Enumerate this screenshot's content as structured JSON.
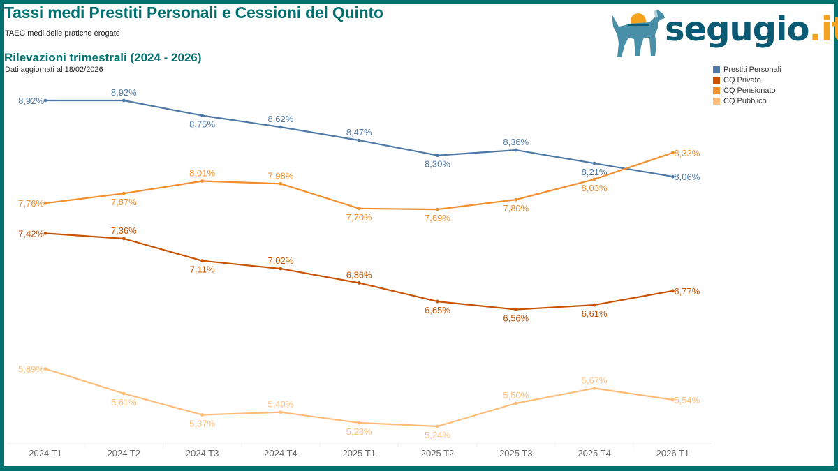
{
  "header": {
    "title": "Tassi medi Prestiti Personali e Cessioni del Quinto",
    "subtitle": "TAEG medi delle pratiche erogate",
    "section_title": "Rilevazioni trimestrali (2024 - 2026)",
    "updated": "Dati aggiornati al 18/02/2026"
  },
  "logo": {
    "name": "segugio",
    "tld": ".it",
    "colors": {
      "text": "#0b5a73",
      "tld": "#f5a21e",
      "dog": "#4a8fa8",
      "coin": "#f5a21e"
    }
  },
  "theme": {
    "frame": "#00716f"
  },
  "chart_data": {
    "type": "line",
    "title": "Rilevazioni trimestrali (2024 - 2026)",
    "xlabel": "",
    "ylabel": "",
    "ylim": [
      5.24,
      8.92
    ],
    "grid": false,
    "legend_position": "top-right",
    "categories": [
      "2024 T1",
      "2024 T2",
      "2024 T3",
      "2024 T4",
      "2025 T1",
      "2025 T2",
      "2025 T3",
      "2025 T4",
      "2026 T1"
    ],
    "series": [
      {
        "name": "Prestiti Personali",
        "color": "#4e79a7",
        "values": [
          8.92,
          8.92,
          8.75,
          8.62,
          8.47,
          8.3,
          8.36,
          8.21,
          8.06
        ],
        "labels": [
          "8,92%",
          "8,92%",
          "8,75%",
          "8,62%",
          "8,47%",
          "8,30%",
          "8,36%",
          "8,21%",
          "8,06%"
        ],
        "label_pos": [
          "left",
          "above",
          "below",
          "above",
          "above",
          "below",
          "above",
          "below",
          "right"
        ]
      },
      {
        "name": "CQ Privato",
        "color": "#c85200",
        "values": [
          7.42,
          7.36,
          7.11,
          7.02,
          6.86,
          6.65,
          6.56,
          6.61,
          6.77
        ],
        "labels": [
          "7,42%",
          "7,36%",
          "7,11%",
          "7,02%",
          "6,86%",
          "6,65%",
          "6,56%",
          "6,61%",
          "6,77%"
        ],
        "label_pos": [
          "left",
          "above",
          "below",
          "above",
          "above",
          "below",
          "below",
          "below",
          "right"
        ]
      },
      {
        "name": "CQ Pensionato",
        "color": "#f28e2b",
        "values": [
          7.76,
          7.87,
          8.01,
          7.98,
          7.7,
          7.69,
          7.8,
          8.03,
          8.33
        ],
        "labels": [
          "7,76%",
          "7,87%",
          "8,01%",
          "7,98%",
          "7,70%",
          "7,69%",
          "7,80%",
          "8,03%",
          "8,33%"
        ],
        "label_pos": [
          "left",
          "below",
          "above",
          "above",
          "below",
          "below",
          "below",
          "below",
          "right"
        ]
      },
      {
        "name": "CQ Pubblico",
        "color": "#ffbc79",
        "values": [
          5.89,
          5.61,
          5.37,
          5.4,
          5.28,
          5.24,
          5.5,
          5.67,
          5.54
        ],
        "labels": [
          "5,89%",
          "5,61%",
          "5,37%",
          "5,40%",
          "5,28%",
          "5,24%",
          "5,50%",
          "5,67%",
          "5,54%"
        ],
        "label_pos": [
          "left",
          "below",
          "below",
          "above",
          "below",
          "below",
          "above",
          "above",
          "right"
        ]
      }
    ]
  }
}
